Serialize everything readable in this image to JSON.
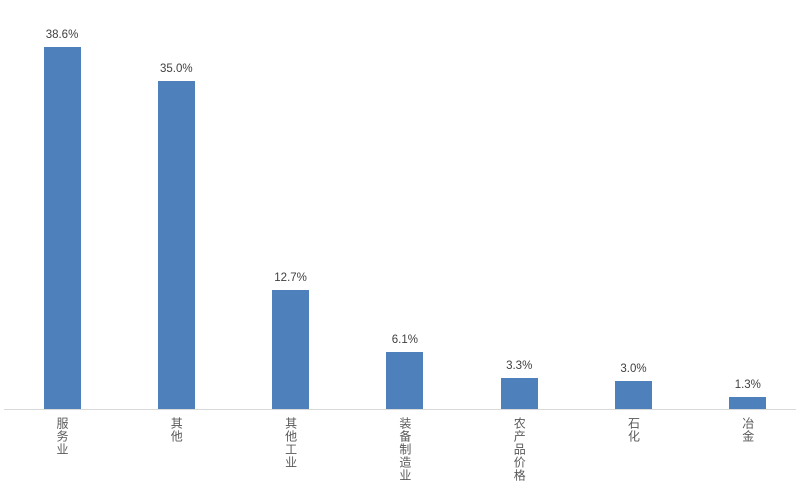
{
  "chart_data": {
    "type": "bar",
    "title": "",
    "xlabel": "",
    "ylabel": "",
    "categories": [
      "服务业",
      "其他",
      "其他工业",
      "装备制造业",
      "农产品价格",
      "石化",
      "冶金"
    ],
    "values": [
      38.6,
      35.0,
      12.7,
      6.1,
      3.3,
      3.0,
      1.3
    ],
    "value_labels": [
      "38.6%",
      "35.0%",
      "12.7%",
      "6.1%",
      "3.3%",
      "3.0%",
      "1.3%"
    ],
    "series_count": 1,
    "ylim": [
      0,
      40
    ],
    "y_axis_visible": false,
    "gridlines": false,
    "legend": false,
    "category_label_orientation": "vertical-stacked",
    "bar_color": "#4E80BC",
    "axis_line_color": "#D9D9D9",
    "value_label_color": "#404040",
    "category_label_color": "#595959",
    "background_color": "#FFFFFF"
  }
}
